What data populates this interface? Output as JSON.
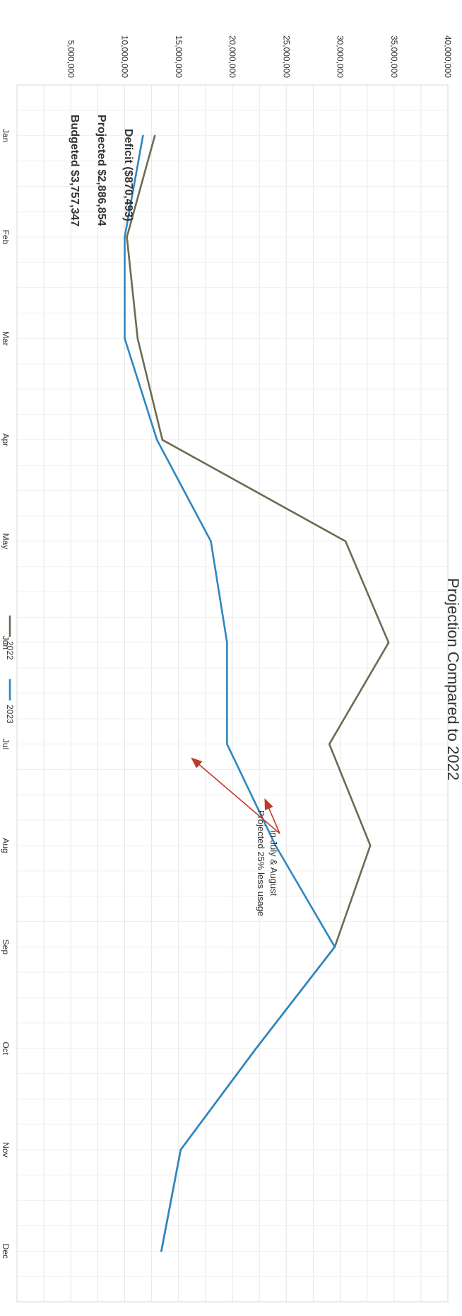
{
  "chart_data": {
    "type": "line",
    "title": "Projection Compared to 2022",
    "categories": [
      "Jan",
      "Feb",
      "Mar",
      "Apr",
      "May",
      "Jun",
      "Jul",
      "Aug",
      "Sep",
      "Oct",
      "Nov",
      "Dec"
    ],
    "y_ticks": [
      "5,000,000",
      "10,000,000",
      "15,000,000",
      "20,000,000",
      "25,000,000",
      "30,000,000",
      "35,000,000",
      "40,000,000"
    ],
    "ylim": [
      0,
      40000000
    ],
    "grid": true,
    "legend_position": "bottom",
    "orientation": "rotated 90° clockwise",
    "series": [
      {
        "name": "2022",
        "color": "#6b6b52",
        "values": [
          12800000,
          10200000,
          11200000,
          13500000,
          30500000,
          34500000,
          29000000,
          32800000,
          29500000,
          22200000,
          15200000,
          13400000
        ]
      },
      {
        "name": "2023",
        "color": "#2e86c1",
        "values": [
          11700000,
          10000000,
          10000000,
          13000000,
          18000000,
          19500000,
          19500000,
          24000000,
          29500000,
          22200000,
          15200000,
          13400000
        ]
      }
    ],
    "annotation": {
      "lines": [
        "Projected 25% less usage",
        "in July & August"
      ],
      "arrow_color": "#c0392b"
    }
  },
  "summary": {
    "budgeted": "Budgeted  $3,757,347",
    "projected": "Projected  $2,886,854",
    "deficit": "Deficit  ($870,493)"
  }
}
